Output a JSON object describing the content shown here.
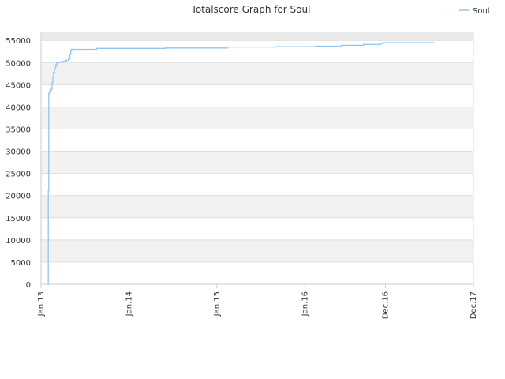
{
  "chart_data": {
    "type": "line",
    "title": "Totalscore Graph for Soul",
    "xlabel": "",
    "ylabel": "",
    "x_ticks": [
      "Jan.13",
      "Jan.14",
      "Jan.15",
      "Jan.16",
      "Dec.16",
      "Dec.17"
    ],
    "x_tick_dates": [
      "2013-01-01",
      "2014-01-01",
      "2015-01-01",
      "2016-01-01",
      "2016-12-01",
      "2017-12-01"
    ],
    "y_ticks": [
      0,
      5000,
      10000,
      15000,
      20000,
      25000,
      30000,
      35000,
      40000,
      45000,
      50000,
      55000
    ],
    "ylim": [
      0,
      57000
    ],
    "grid": true,
    "legend_position": "top-right",
    "colors": {
      "line": "#92c5f0",
      "band_alt": "#f2f2f2",
      "band_top": "#ebebeb",
      "grid": "#dddddd",
      "axis": "#cccccc",
      "text": "#333333"
    },
    "series": [
      {
        "name": "Soul",
        "points": [
          [
            "2013-01-30",
            0
          ],
          [
            "2013-01-31",
            21000
          ],
          [
            "2013-02-02",
            43000
          ],
          [
            "2013-02-05",
            43500
          ],
          [
            "2013-02-12",
            44000
          ],
          [
            "2013-02-16",
            45500
          ],
          [
            "2013-02-19",
            46800
          ],
          [
            "2013-02-22",
            47800
          ],
          [
            "2013-02-26",
            48600
          ],
          [
            "2013-03-03",
            49500
          ],
          [
            "2013-03-08",
            50000
          ],
          [
            "2013-03-20",
            50100
          ],
          [
            "2013-04-01",
            50300
          ],
          [
            "2013-04-15",
            50500
          ],
          [
            "2013-04-25",
            50800
          ],
          [
            "2013-05-01",
            51800
          ],
          [
            "2013-05-04",
            52700
          ],
          [
            "2013-05-08",
            53000
          ],
          [
            "2013-08-20",
            53200
          ],
          [
            "2014-06-01",
            53300
          ],
          [
            "2015-02-15",
            53500
          ],
          [
            "2015-09-01",
            53600
          ],
          [
            "2016-02-15",
            53700
          ],
          [
            "2016-06-01",
            53900
          ],
          [
            "2016-09-01",
            54100
          ],
          [
            "2016-11-10",
            54300
          ],
          [
            "2016-11-20",
            54500
          ],
          [
            "2017-06-20",
            54500
          ]
        ]
      }
    ]
  }
}
